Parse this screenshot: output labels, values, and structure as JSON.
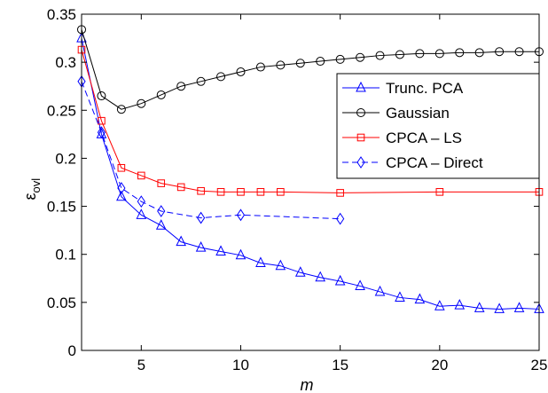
{
  "chart_data": {
    "type": "line",
    "xlabel": "m",
    "ylabel": "ε",
    "ylabel_sub": "ovl",
    "xlim": [
      2,
      25
    ],
    "ylim": [
      0,
      0.35
    ],
    "xticks": [
      5,
      10,
      15,
      20,
      25
    ],
    "yticks": [
      0,
      0.05,
      0.1,
      0.15,
      0.2,
      0.25,
      0.3,
      0.35
    ],
    "xtick_labels": [
      "5",
      "10",
      "15",
      "20",
      "25"
    ],
    "ytick_labels": [
      "0",
      "0.05",
      "0.1",
      "0.15",
      "0.2",
      "0.25",
      "0.3",
      "0.35"
    ],
    "grid": false,
    "legend_position": "top-right",
    "series": [
      {
        "name": "Trunc. PCA",
        "color": "#0000ff",
        "marker": "triangle",
        "dash": "solid",
        "x": [
          2,
          3,
          4,
          5,
          6,
          7,
          8,
          9,
          10,
          11,
          12,
          13,
          14,
          15,
          16,
          17,
          18,
          19,
          20,
          21,
          22,
          23,
          24,
          25
        ],
        "y": [
          0.325,
          0.225,
          0.16,
          0.141,
          0.13,
          0.113,
          0.107,
          0.103,
          0.099,
          0.091,
          0.088,
          0.081,
          0.076,
          0.072,
          0.067,
          0.061,
          0.055,
          0.053,
          0.046,
          0.047,
          0.044,
          0.043,
          0.044,
          0.043
        ]
      },
      {
        "name": "Gaussian",
        "color": "#000000",
        "marker": "circle",
        "dash": "solid",
        "x": [
          2,
          3,
          4,
          5,
          6,
          7,
          8,
          9,
          10,
          11,
          12,
          13,
          14,
          15,
          16,
          17,
          18,
          19,
          20,
          21,
          22,
          23,
          24,
          25
        ],
        "y": [
          0.334,
          0.265,
          0.251,
          0.257,
          0.266,
          0.275,
          0.28,
          0.285,
          0.29,
          0.295,
          0.297,
          0.299,
          0.301,
          0.303,
          0.305,
          0.307,
          0.308,
          0.309,
          0.309,
          0.31,
          0.31,
          0.311,
          0.311,
          0.311
        ]
      },
      {
        "name": "CPCA – LS",
        "color": "#ff0000",
        "marker": "square",
        "dash": "solid",
        "x": [
          2,
          3,
          4,
          5,
          6,
          7,
          8,
          9,
          10,
          11,
          12,
          15,
          20,
          25
        ],
        "y": [
          0.313,
          0.239,
          0.19,
          0.182,
          0.174,
          0.17,
          0.166,
          0.165,
          0.165,
          0.165,
          0.165,
          0.164,
          0.165,
          0.165
        ]
      },
      {
        "name": "CPCA – Direct",
        "color": "#0000ff",
        "marker": "diamond",
        "dash": "dashed",
        "x": [
          2,
          3,
          4,
          5,
          6,
          8,
          10,
          15
        ],
        "y": [
          0.28,
          0.227,
          0.169,
          0.155,
          0.145,
          0.138,
          0.141,
          0.137
        ]
      }
    ]
  }
}
